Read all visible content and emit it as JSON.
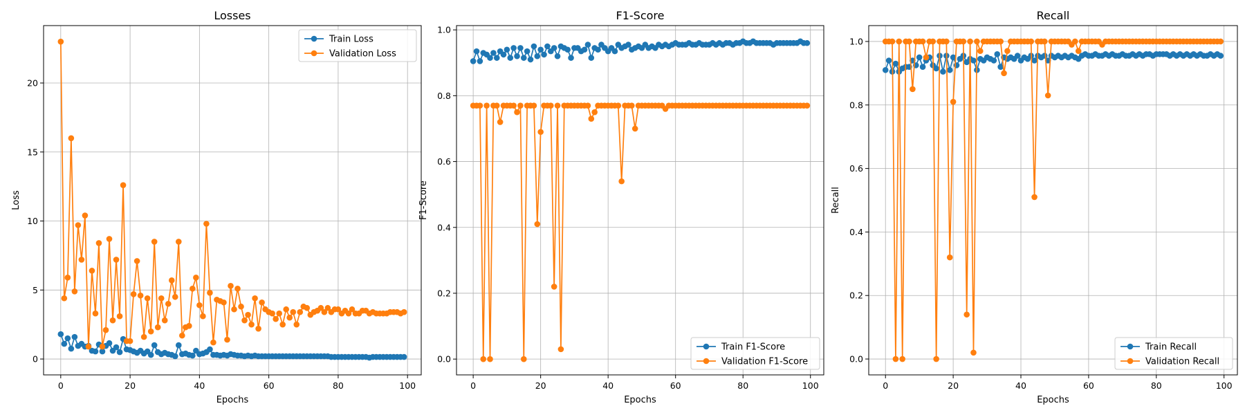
{
  "chart_data": [
    {
      "type": "line",
      "title": "Losses",
      "xlabel": "Epochs",
      "ylabel": "Loss",
      "xlim": [
        -4.95,
        103.95
      ],
      "ylim": [
        -1.15,
        24.16
      ],
      "xticks": [
        0,
        20,
        40,
        60,
        80,
        100
      ],
      "yticks": [
        0,
        5,
        10,
        15,
        20
      ],
      "tick_labels_x": [
        "0",
        "20",
        "40",
        "60",
        "80",
        "100"
      ],
      "tick_labels_y": [
        "0",
        "5",
        "10",
        "15",
        "20"
      ],
      "grid": true,
      "legend": "top-right",
      "series": [
        {
          "name": "Train Loss",
          "color": "#1f77b4",
          "values": [
            1.8,
            1.1,
            1.5,
            0.75,
            1.6,
            0.95,
            1.1,
            0.9,
            0.95,
            0.6,
            0.55,
            1.05,
            0.55,
            0.95,
            1.15,
            0.6,
            0.85,
            0.5,
            1.45,
            0.7,
            0.65,
            0.55,
            0.45,
            0.6,
            0.4,
            0.55,
            0.3,
            1.0,
            0.5,
            0.35,
            0.45,
            0.35,
            0.3,
            0.2,
            1.0,
            0.35,
            0.4,
            0.3,
            0.25,
            0.6,
            0.35,
            0.4,
            0.5,
            0.7,
            0.3,
            0.3,
            0.25,
            0.3,
            0.25,
            0.35,
            0.3,
            0.25,
            0.25,
            0.2,
            0.25,
            0.2,
            0.25,
            0.2,
            0.2,
            0.2,
            0.2,
            0.2,
            0.2,
            0.2,
            0.2,
            0.2,
            0.2,
            0.2,
            0.2,
            0.2,
            0.2,
            0.2,
            0.2,
            0.2,
            0.2,
            0.2,
            0.2,
            0.2,
            0.15,
            0.15,
            0.15,
            0.15,
            0.15,
            0.15,
            0.15,
            0.15,
            0.15,
            0.15,
            0.15,
            0.1,
            0.15,
            0.15,
            0.15,
            0.15,
            0.15,
            0.15,
            0.15,
            0.15,
            0.15,
            0.15
          ]
        },
        {
          "name": "Validation Loss",
          "color": "#ff7f0e",
          "values": [
            23.0,
            4.4,
            5.9,
            16.0,
            4.9,
            9.7,
            7.2,
            10.4,
            0.9,
            6.4,
            3.3,
            8.4,
            0.9,
            2.1,
            8.7,
            2.8,
            7.2,
            3.1,
            12.6,
            1.3,
            1.3,
            4.7,
            7.1,
            4.6,
            1.6,
            4.4,
            2.0,
            8.5,
            2.3,
            4.4,
            2.8,
            4.0,
            5.7,
            4.5,
            8.5,
            1.7,
            2.3,
            2.4,
            5.1,
            5.9,
            3.9,
            3.1,
            9.8,
            4.8,
            1.2,
            4.3,
            4.2,
            4.1,
            1.4,
            5.3,
            3.6,
            5.1,
            3.8,
            2.8,
            3.2,
            2.5,
            4.4,
            2.2,
            4.1,
            3.6,
            3.4,
            3.3,
            2.9,
            3.3,
            2.5,
            3.6,
            3.0,
            3.4,
            2.5,
            3.4,
            3.8,
            3.7,
            3.2,
            3.4,
            3.5,
            3.7,
            3.4,
            3.7,
            3.4,
            3.6,
            3.6,
            3.3,
            3.5,
            3.3,
            3.6,
            3.3,
            3.3,
            3.5,
            3.5,
            3.3,
            3.4,
            3.3,
            3.3,
            3.3,
            3.3,
            3.4,
            3.4,
            3.4,
            3.3,
            3.4
          ]
        }
      ]
    },
    {
      "type": "line",
      "title": "F1-Score",
      "xlabel": "Epochs",
      "ylabel": "F1-Score",
      "xlim": [
        -4.95,
        103.95
      ],
      "ylim": [
        -0.048,
        1.013
      ],
      "xticks": [
        0,
        20,
        40,
        60,
        80,
        100
      ],
      "yticks": [
        0.0,
        0.2,
        0.4,
        0.6,
        0.8,
        1.0
      ],
      "tick_labels_x": [
        "0",
        "20",
        "40",
        "60",
        "80",
        "100"
      ],
      "tick_labels_y": [
        "0.0",
        "0.2",
        "0.4",
        "0.6",
        "0.8",
        "1.0"
      ],
      "grid": true,
      "legend": "bottom-right",
      "series": [
        {
          "name": "Train F1-Score",
          "color": "#1f77b4",
          "values": [
            0.905,
            0.935,
            0.905,
            0.93,
            0.925,
            0.915,
            0.93,
            0.915,
            0.935,
            0.925,
            0.94,
            0.915,
            0.945,
            0.92,
            0.945,
            0.915,
            0.935,
            0.91,
            0.95,
            0.92,
            0.94,
            0.925,
            0.95,
            0.935,
            0.945,
            0.92,
            0.95,
            0.945,
            0.94,
            0.915,
            0.945,
            0.945,
            0.935,
            0.94,
            0.955,
            0.915,
            0.945,
            0.94,
            0.955,
            0.945,
            0.935,
            0.945,
            0.935,
            0.955,
            0.945,
            0.95,
            0.955,
            0.94,
            0.945,
            0.95,
            0.945,
            0.955,
            0.945,
            0.95,
            0.945,
            0.955,
            0.95,
            0.955,
            0.95,
            0.955,
            0.96,
            0.955,
            0.955,
            0.955,
            0.96,
            0.955,
            0.955,
            0.96,
            0.955,
            0.955,
            0.955,
            0.96,
            0.955,
            0.96,
            0.955,
            0.96,
            0.96,
            0.955,
            0.96,
            0.96,
            0.965,
            0.96,
            0.96,
            0.965,
            0.96,
            0.96,
            0.96,
            0.96,
            0.96,
            0.955,
            0.96,
            0.96,
            0.96,
            0.96,
            0.96,
            0.96,
            0.96,
            0.965,
            0.96,
            0.96
          ]
        },
        {
          "name": "Validation F1-Score",
          "color": "#ff7f0e",
          "values": [
            0.77,
            0.77,
            0.77,
            0.0,
            0.77,
            0.0,
            0.77,
            0.77,
            0.72,
            0.77,
            0.77,
            0.77,
            0.77,
            0.75,
            0.77,
            0.0,
            0.77,
            0.77,
            0.77,
            0.41,
            0.69,
            0.77,
            0.77,
            0.77,
            0.22,
            0.77,
            0.03,
            0.77,
            0.77,
            0.77,
            0.77,
            0.77,
            0.77,
            0.77,
            0.77,
            0.73,
            0.75,
            0.77,
            0.77,
            0.77,
            0.77,
            0.77,
            0.77,
            0.77,
            0.54,
            0.77,
            0.77,
            0.77,
            0.7,
            0.77,
            0.77,
            0.77,
            0.77,
            0.77,
            0.77,
            0.77,
            0.77,
            0.76,
            0.77,
            0.77,
            0.77,
            0.77,
            0.77,
            0.77,
            0.77,
            0.77,
            0.77,
            0.77,
            0.77,
            0.77,
            0.77,
            0.77,
            0.77,
            0.77,
            0.77,
            0.77,
            0.77,
            0.77,
            0.77,
            0.77,
            0.77,
            0.77,
            0.77,
            0.77,
            0.77,
            0.77,
            0.77,
            0.77,
            0.77,
            0.77,
            0.77,
            0.77,
            0.77,
            0.77,
            0.77,
            0.77,
            0.77,
            0.77,
            0.77,
            0.77
          ]
        }
      ]
    },
    {
      "type": "line",
      "title": "Recall",
      "xlabel": "Epochs",
      "ylabel": "Recall",
      "xlim": [
        -4.95,
        103.95
      ],
      "ylim": [
        -0.05,
        1.05
      ],
      "xticks": [
        0,
        20,
        40,
        60,
        80,
        100
      ],
      "yticks": [
        0.0,
        0.2,
        0.4,
        0.6,
        0.8,
        1.0
      ],
      "tick_labels_x": [
        "0",
        "20",
        "40",
        "60",
        "80",
        "100"
      ],
      "tick_labels_y": [
        "0.0",
        "0.2",
        "0.4",
        "0.6",
        "0.8",
        "1.0"
      ],
      "grid": true,
      "legend": "bottom-right",
      "series": [
        {
          "name": "Train Recall",
          "color": "#1f77b4",
          "values": [
            0.91,
            0.94,
            0.905,
            0.93,
            0.905,
            0.915,
            0.92,
            0.92,
            0.94,
            0.925,
            0.95,
            0.92,
            0.94,
            0.95,
            0.925,
            0.915,
            0.955,
            0.905,
            0.955,
            0.91,
            0.95,
            0.925,
            0.945,
            0.955,
            0.935,
            0.945,
            0.94,
            0.91,
            0.945,
            0.94,
            0.95,
            0.945,
            0.94,
            0.96,
            0.92,
            0.95,
            0.945,
            0.95,
            0.945,
            0.955,
            0.94,
            0.95,
            0.945,
            0.955,
            0.94,
            0.955,
            0.95,
            0.955,
            0.94,
            0.955,
            0.95,
            0.955,
            0.95,
            0.955,
            0.95,
            0.955,
            0.95,
            0.945,
            0.955,
            0.96,
            0.955,
            0.955,
            0.96,
            0.955,
            0.955,
            0.96,
            0.955,
            0.96,
            0.955,
            0.955,
            0.96,
            0.955,
            0.955,
            0.96,
            0.955,
            0.96,
            0.955,
            0.96,
            0.96,
            0.955,
            0.96,
            0.96,
            0.96,
            0.96,
            0.955,
            0.96,
            0.955,
            0.96,
            0.955,
            0.96,
            0.955,
            0.96,
            0.955,
            0.96,
            0.955,
            0.955,
            0.96,
            0.955,
            0.96,
            0.955
          ]
        },
        {
          "name": "Validation Recall",
          "color": "#ff7f0e",
          "values": [
            1.0,
            1.0,
            1.0,
            0.0,
            1.0,
            0.0,
            1.0,
            1.0,
            0.85,
            1.0,
            1.0,
            1.0,
            0.95,
            1.0,
            1.0,
            0.0,
            1.0,
            1.0,
            1.0,
            0.32,
            0.81,
            1.0,
            1.0,
            1.0,
            0.14,
            1.0,
            0.02,
            1.0,
            0.97,
            1.0,
            1.0,
            1.0,
            1.0,
            1.0,
            1.0,
            0.9,
            0.97,
            1.0,
            1.0,
            1.0,
            1.0,
            1.0,
            1.0,
            1.0,
            0.51,
            1.0,
            1.0,
            1.0,
            0.83,
            1.0,
            1.0,
            1.0,
            1.0,
            1.0,
            1.0,
            0.99,
            1.0,
            0.97,
            1.0,
            1.0,
            1.0,
            1.0,
            1.0,
            1.0,
            0.99,
            1.0,
            1.0,
            1.0,
            1.0,
            1.0,
            1.0,
            1.0,
            1.0,
            1.0,
            1.0,
            1.0,
            1.0,
            1.0,
            1.0,
            1.0,
            1.0,
            1.0,
            1.0,
            1.0,
            1.0,
            1.0,
            1.0,
            1.0,
            1.0,
            1.0,
            1.0,
            1.0,
            1.0,
            1.0,
            1.0,
            1.0,
            1.0,
            1.0,
            1.0,
            1.0
          ]
        }
      ]
    }
  ]
}
